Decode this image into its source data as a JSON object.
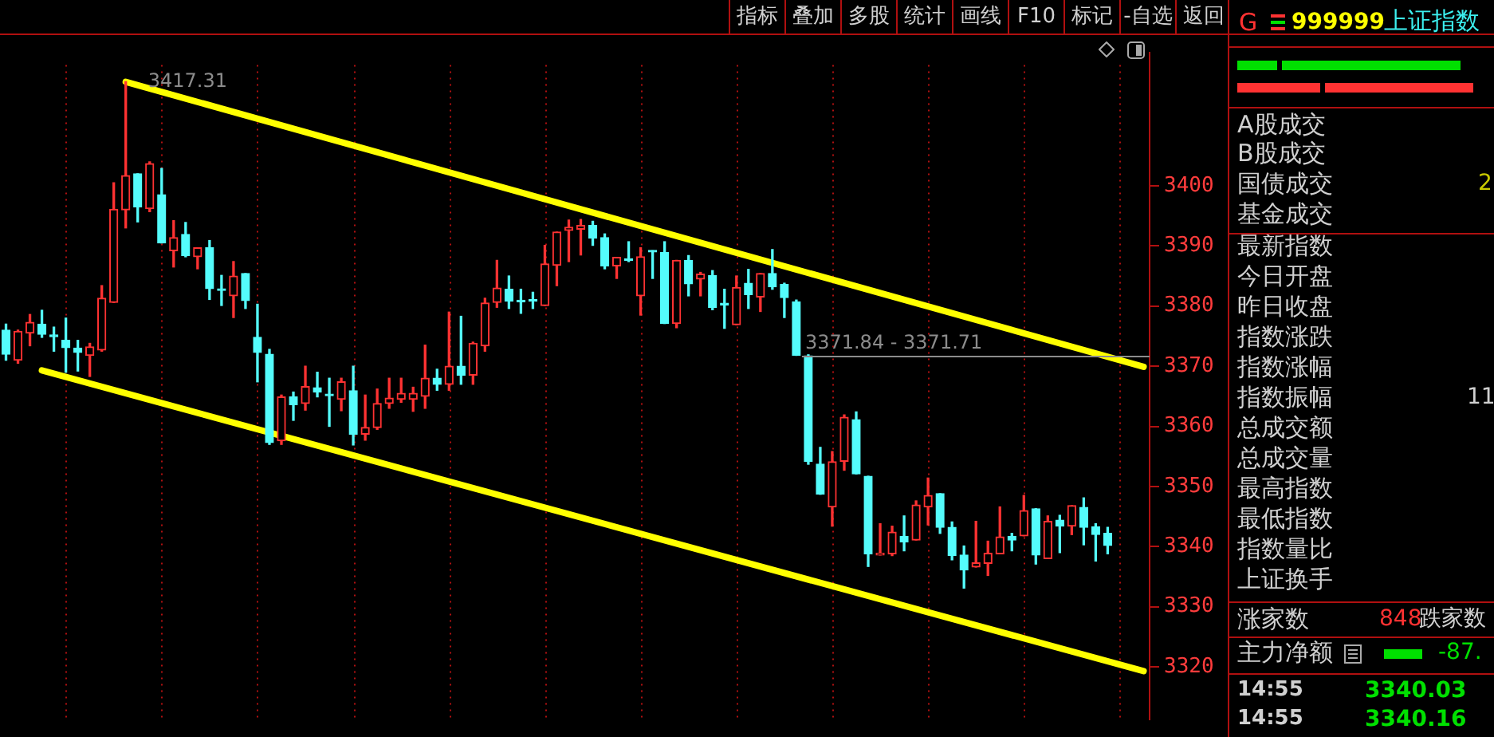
{
  "chart_data": [
    {
      "type": "candlestick",
      "ylim": [
        3311.2,
        3422.2
      ],
      "yticks": [
        3320,
        3330,
        3340,
        3350,
        3360,
        3370,
        3380,
        3390,
        3400
      ],
      "grid": "x",
      "legend": false,
      "tick_labels": "y",
      "categories": [
        null,
        null,
        null,
        null,
        null,
        null,
        null,
        null,
        null,
        null,
        null,
        null,
        null,
        null,
        null,
        null,
        null,
        null,
        null,
        null,
        null,
        null,
        null,
        null,
        null,
        null,
        null,
        null,
        null,
        null,
        null,
        null,
        null,
        null,
        null,
        null,
        null,
        null,
        null,
        null,
        null,
        null,
        null,
        null,
        null,
        null,
        null,
        null,
        null,
        null,
        null,
        null,
        null,
        null,
        null,
        null,
        null,
        null,
        null,
        null,
        null,
        null,
        null,
        null,
        null,
        null,
        null,
        null,
        null,
        null,
        null,
        null,
        null,
        null,
        null,
        null,
        null,
        null,
        null,
        null,
        null,
        null,
        null,
        null,
        null,
        null,
        null,
        null,
        null,
        null,
        null,
        null,
        null,
        null,
        null,
        null
      ],
      "ohlc": [
        [
          3376,
          3377,
          3371,
          3372
        ],
        [
          3371,
          3376,
          3370.5,
          3375.8
        ],
        [
          3375.5,
          3378.6,
          3373.4,
          3377.3
        ],
        [
          3377,
          3379.3,
          3374.8,
          3375.3
        ],
        [
          3375.2,
          3376.5,
          3372.5,
          3374.9
        ],
        [
          3374.3,
          3378,
          3369,
          3373.1
        ],
        [
          3373,
          3374.3,
          3369.2,
          3372.3
        ],
        [
          3371.8,
          3373.8,
          3368.3,
          3373.2
        ],
        [
          3372.7,
          3383.4,
          3372.5,
          3381.3
        ],
        [
          3380.6,
          3400.5,
          3380.6,
          3396.1
        ],
        [
          3396,
          3417.31,
          3393,
          3401.7
        ],
        [
          3402,
          3402,
          3394,
          3396.5
        ],
        [
          3396.2,
          3404,
          3395.7,
          3403.7
        ],
        [
          3398.5,
          3402.9,
          3390.5,
          3390.5
        ],
        [
          3389.2,
          3394.2,
          3386.5,
          3391.4
        ],
        [
          3391.9,
          3393.9,
          3388.2,
          3388.4
        ],
        [
          3388.2,
          3389.7,
          3386.2,
          3389.7
        ],
        [
          3389.7,
          3390.9,
          3381.1,
          3382.9
        ],
        [
          3382.8,
          3385.1,
          3380.1,
          3382.6
        ],
        [
          3381.7,
          3387.4,
          3378.1,
          3385
        ],
        [
          3385.4,
          3385.4,
          3379.6,
          3380.9
        ],
        [
          3374.8,
          3380.3,
          3367.4,
          3372.3
        ],
        [
          3372,
          3372.8,
          3357,
          3357.3
        ],
        [
          3357.6,
          3365.2,
          3357,
          3364.9
        ],
        [
          3364.9,
          3365.7,
          3361,
          3363.6
        ],
        [
          3363.8,
          3370,
          3362.7,
          3366.6
        ],
        [
          3366.4,
          3369,
          3364.9,
          3365.7
        ],
        [
          3365.2,
          3368,
          3360,
          3365.1
        ],
        [
          3364.5,
          3368,
          3362.6,
          3367.4
        ],
        [
          3365.9,
          3370,
          3356.9,
          3358.7
        ],
        [
          3358.7,
          3365.2,
          3357.7,
          3359.8
        ],
        [
          3359.8,
          3366.2,
          3359.5,
          3363.8
        ],
        [
          3363.8,
          3368,
          3363,
          3364.7
        ],
        [
          3364.5,
          3368,
          3364,
          3365.5
        ],
        [
          3364.5,
          3366.5,
          3362.5,
          3365.5
        ],
        [
          3365,
          3373.5,
          3363,
          3368
        ],
        [
          3368,
          3369.5,
          3366,
          3367
        ],
        [
          3367,
          3379,
          3366,
          3370
        ],
        [
          3370,
          3378.3,
          3367,
          3368.5
        ],
        [
          3368.5,
          3374,
          3367,
          3373.8
        ],
        [
          3373.4,
          3381.3,
          3372.5,
          3380.5
        ],
        [
          3380.6,
          3387.6,
          3379.8,
          3383
        ],
        [
          3382.8,
          3385,
          3379.6,
          3380.8
        ],
        [
          3380.8,
          3382.8,
          3378.8,
          3380.7
        ],
        [
          3380.9,
          3382.3,
          3379.6,
          3380.8
        ],
        [
          3380.1,
          3390.1,
          3380.1,
          3387
        ],
        [
          3386.8,
          3392.3,
          3383.4,
          3392.3
        ],
        [
          3392.6,
          3394.3,
          3387.4,
          3393.1
        ],
        [
          3392.8,
          3394.4,
          3388.5,
          3393.4
        ],
        [
          3393.4,
          3394.1,
          3390.1,
          3391.3
        ],
        [
          3391.4,
          3392,
          3386.2,
          3386.7
        ],
        [
          3386.7,
          3388.1,
          3384.6,
          3388.1
        ],
        [
          3387.7,
          3390.7,
          3387.4,
          3387.6
        ],
        [
          3381.7,
          3389.7,
          3378.5,
          3388.2
        ],
        [
          3389.1,
          3389.2,
          3384.6,
          3389
        ],
        [
          3388.9,
          3390.7,
          3377.1,
          3377.1
        ],
        [
          3377.1,
          3387.6,
          3376.4,
          3387.6
        ],
        [
          3387.6,
          3388.4,
          3381.7,
          3383.7
        ],
        [
          3384.5,
          3385.6,
          3381.7,
          3385.3
        ],
        [
          3385.1,
          3385.9,
          3379.4,
          3379.8
        ],
        [
          3380.3,
          3382.8,
          3376.3,
          3380.2
        ],
        [
          3376.9,
          3385,
          3376.9,
          3383.1
        ],
        [
          3383.8,
          3386.1,
          3379.6,
          3381.9
        ],
        [
          3381.5,
          3385.4,
          3379.1,
          3385.4
        ],
        [
          3385.4,
          3389.4,
          3382.8,
          3383.2
        ],
        [
          3383.6,
          3383.8,
          3378.1,
          3381.4
        ],
        [
          3380.7,
          3381,
          3371.8,
          3371.84
        ],
        [
          3371.71,
          3371.9,
          3353.7,
          3354.2
        ],
        [
          3353.7,
          3356.5,
          3348.7,
          3348.7
        ],
        [
          3346.6,
          3355.8,
          3343.4,
          3354.1
        ],
        [
          3354.2,
          3361.9,
          3352.7,
          3361.5
        ],
        [
          3361.1,
          3362.4,
          3352.1,
          3352.1
        ],
        [
          3351.7,
          3351.7,
          3336.7,
          3338.8
        ],
        [
          3338.6,
          3343.8,
          3338.6,
          3338.9
        ],
        [
          3338.8,
          3343.4,
          3338.5,
          3342.4
        ],
        [
          3341.7,
          3345.1,
          3339.3,
          3340.8
        ],
        [
          3341.1,
          3347.6,
          3341.1,
          3346.9
        ],
        [
          3346.6,
          3351.4,
          3343.6,
          3348.5
        ],
        [
          3348.8,
          3348.8,
          3342.2,
          3343.2
        ],
        [
          3343.2,
          3344.1,
          3337.8,
          3338.5
        ],
        [
          3338.6,
          3340.1,
          3333.1,
          3336.1
        ],
        [
          3336.6,
          3344.2,
          3336.6,
          3337.3
        ],
        [
          3337.2,
          3340.9,
          3335.2,
          3338.9
        ],
        [
          3338.8,
          3346.6,
          3338.8,
          3341.6
        ],
        [
          3341.7,
          3342.2,
          3339.3,
          3341.1
        ],
        [
          3341.8,
          3348.5,
          3341.8,
          3346
        ],
        [
          3346.3,
          3346.3,
          3337.1,
          3338.6
        ],
        [
          3338,
          3345.1,
          3338,
          3344.2
        ],
        [
          3344.4,
          3345.2,
          3339,
          3343.4
        ],
        [
          3343.4,
          3346.8,
          3342,
          3346.8
        ],
        [
          3346.5,
          3348.1,
          3340.3,
          3343.2
        ],
        [
          3343.3,
          3343.8,
          3337.6,
          3342
        ],
        [
          3342.2,
          3343.2,
          3338.8,
          3340.2
        ],
        null,
        null,
        null
      ],
      "colors": [
        "#54fcfc",
        "#ff3232",
        "#ff3232",
        "#54fcfc",
        "#54fcfc",
        "#54fcfc",
        "#54fcfc",
        "#ff3232",
        "#ff3232",
        "#ff3232",
        "#ff3232",
        "#54fcfc",
        "#ff3232",
        "#54fcfc",
        "#ff3232",
        "#54fcfc",
        "#ff3232",
        "#54fcfc",
        "#54fcfc",
        "#ff3232",
        "#54fcfc",
        "#54fcfc",
        "#54fcfc",
        "#ff3232",
        "#54fcfc",
        "#ff3232",
        "#54fcfc",
        "#54fcfc",
        "#ff3232",
        "#54fcfc",
        "#ff3232",
        "#ff3232",
        "#ff3232",
        "#ff3232",
        "#ff3232",
        "#ff3232",
        "#54fcfc",
        "#ff3232",
        "#54fcfc",
        "#ff3232",
        "#ff3232",
        "#ff3232",
        "#54fcfc",
        "#54fcfc",
        "#54fcfc",
        "#ff3232",
        "#ff3232",
        "#ff3232",
        "#ff3232",
        "#54fcfc",
        "#54fcfc",
        "#ff3232",
        "#54fcfc",
        "#ff3232",
        "#54fcfc",
        "#54fcfc",
        "#ff3232",
        "#54fcfc",
        "#ff3232",
        "#54fcfc",
        "#54fcfc",
        "#ff3232",
        "#54fcfc",
        "#ff3232",
        "#54fcfc",
        "#54fcfc",
        "#54fcfc",
        "#54fcfc",
        "#54fcfc",
        "#ff3232",
        "#ff3232",
        "#54fcfc",
        "#54fcfc",
        "#ff3232",
        "#ff3232",
        "#54fcfc",
        "#ff3232",
        "#ff3232",
        "#54fcfc",
        "#54fcfc",
        "#54fcfc",
        "#ff3232",
        "#ff3232",
        "#ff3232",
        "#54fcfc",
        "#ff3232",
        "#54fcfc",
        "#ff3232",
        "#54fcfc",
        "#ff3232",
        "#54fcfc",
        "#54fcfc",
        "#54fcfc",
        null,
        null,
        null
      ],
      "series": [
        {
          "type": "line",
          "color": "#ffff00",
          "values": [
            null,
            null,
            null,
            null,
            null,
            null,
            null,
            null,
            null,
            null,
            3417.3,
            null,
            null,
            null,
            null,
            null,
            null,
            null,
            null,
            null,
            null,
            null,
            null,
            null,
            null,
            null,
            null,
            null,
            null,
            null,
            null,
            null,
            null,
            null,
            null,
            null,
            null,
            null,
            null,
            null,
            null,
            null,
            null,
            null,
            null,
            null,
            null,
            null,
            null,
            null,
            null,
            null,
            null,
            null,
            null,
            null,
            null,
            null,
            null,
            null,
            null,
            null,
            null,
            null,
            null,
            null,
            null,
            null,
            null,
            null,
            null,
            null,
            null,
            null,
            null,
            null,
            null,
            null,
            null,
            null,
            null,
            null,
            null,
            null,
            null,
            null,
            null,
            null,
            null,
            null,
            null,
            null,
            null,
            null,
            null,
            3369.9
          ]
        },
        {
          "type": "line",
          "color": "#ffff00",
          "values": [
            null,
            null,
            null,
            3369.3,
            null,
            null,
            null,
            null,
            null,
            null,
            null,
            null,
            null,
            null,
            null,
            null,
            null,
            null,
            null,
            null,
            null,
            null,
            null,
            null,
            null,
            null,
            null,
            null,
            null,
            null,
            null,
            null,
            null,
            null,
            null,
            null,
            null,
            null,
            null,
            null,
            null,
            null,
            null,
            null,
            null,
            null,
            null,
            null,
            null,
            null,
            null,
            null,
            null,
            null,
            null,
            null,
            null,
            null,
            null,
            null,
            null,
            null,
            null,
            null,
            null,
            null,
            null,
            null,
            null,
            null,
            null,
            null,
            null,
            null,
            null,
            null,
            null,
            null,
            null,
            null,
            null,
            null,
            null,
            null,
            null,
            null,
            null,
            null,
            null,
            null,
            null,
            null,
            null,
            null,
            null,
            3319.3
          ]
        }
      ],
      "ref_lines": [
        {
          "axis": "y",
          "value": 3371.84,
          "label": "3371.84 - 3371.71",
          "color": "#8c8c8c"
        }
      ],
      "annotations": [
        "3417.31"
      ]
    },
    {
      "type": "other",
      "annotations": [
        "指标",
        "叠加",
        "多股",
        "统计",
        "画线",
        "F10",
        "标记",
        "-自选",
        "返回"
      ]
    },
    {
      "type": "other",
      "annotations": [
        "G",
        "999999",
        "上证指数",
        "A股成交",
        "B股成交",
        "国债成交",
        "2",
        "基金成交",
        "最新指数",
        "今日开盘",
        "昨日收盘",
        "指数涨跌",
        "指数涨幅",
        "指数振幅",
        "11",
        "总成交额",
        "总成交量",
        "最高指数",
        "最低指数",
        "指数量比",
        "上证换手",
        "涨家数",
        "848",
        "跌家数",
        "主力净额",
        "-87.",
        "14:55",
        "3340.03",
        "14:55",
        "3340.16"
      ]
    }
  ]
}
